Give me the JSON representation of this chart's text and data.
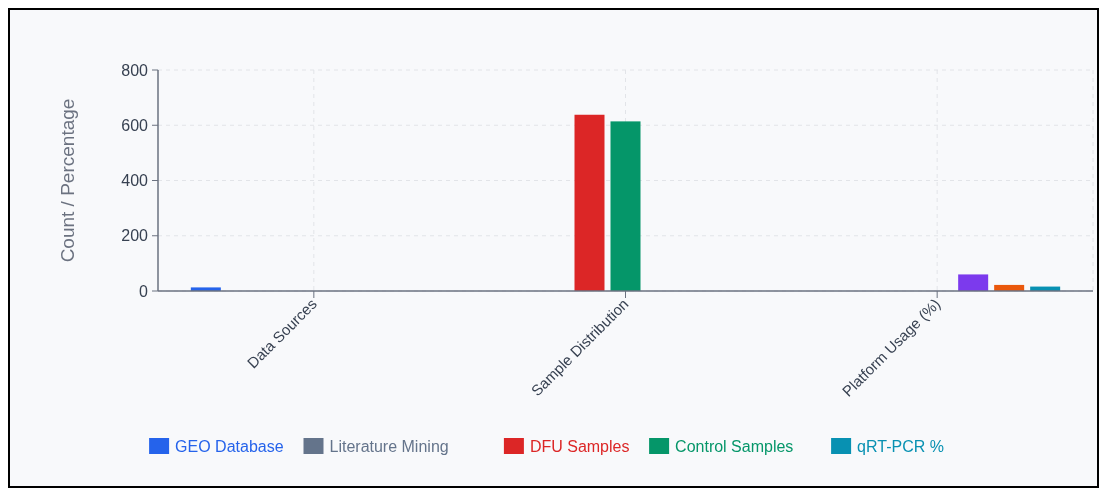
{
  "chart_data": {
    "type": "bar",
    "ylabel": "Count / Percentage",
    "categories": [
      "Data Sources",
      "Sample Distribution",
      "Platform Usage (%)"
    ],
    "series": [
      {
        "name": "GEO Database",
        "color": "#2563eb",
        "values": [
          13,
          null,
          null
        ]
      },
      {
        "name": "Literature Mining",
        "color": "#64748b",
        "values": [
          null,
          null,
          null
        ]
      },
      {
        "name": "DFU Samples",
        "color": "#dc2626",
        "values": [
          null,
          638,
          null
        ]
      },
      {
        "name": "Control Samples",
        "color": "#059669",
        "values": [
          null,
          614,
          null
        ]
      },
      {
        "color": "#7c3aed",
        "values": [
          null,
          null,
          60
        ]
      },
      {
        "color": "#ea580c",
        "values": [
          null,
          null,
          22
        ]
      },
      {
        "name": "qRT-PCR %",
        "color": "#0891b2",
        "values": [
          null,
          null,
          16
        ]
      }
    ],
    "ylim": [
      0,
      800
    ],
    "yticks": [
      0,
      200,
      400,
      600,
      800
    ],
    "grid": true,
    "legend": "bottom"
  }
}
